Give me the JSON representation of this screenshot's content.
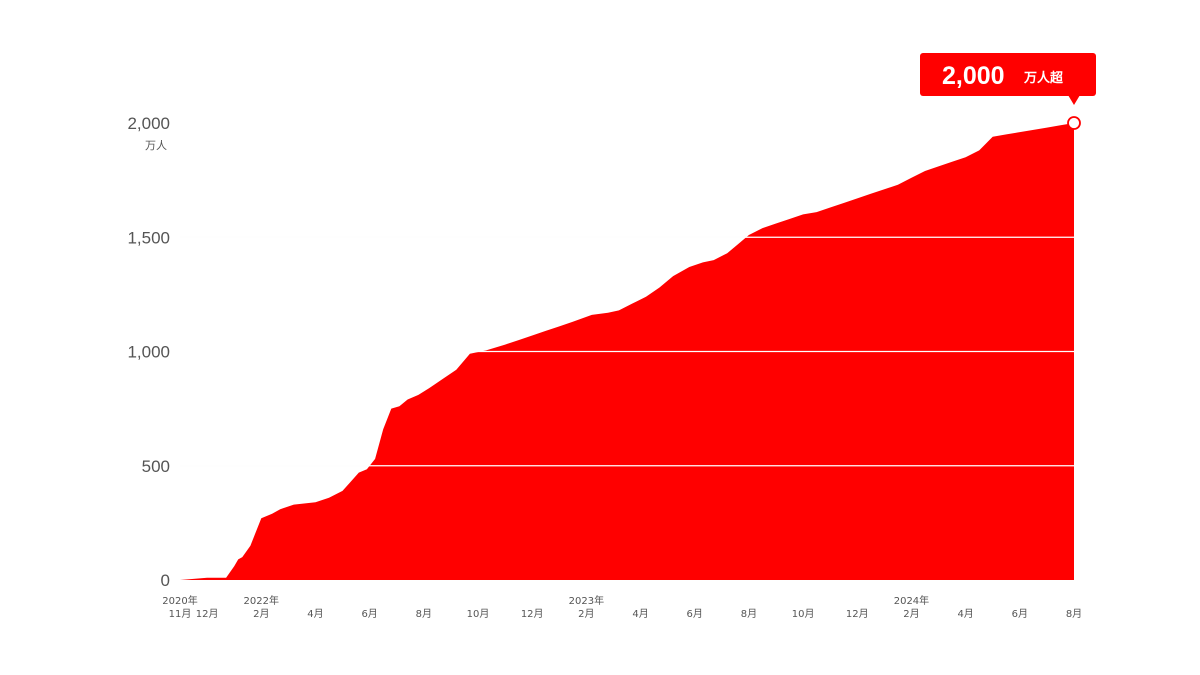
{
  "colors": {
    "fill": "#ff0000",
    "grid": "#e5e5e5",
    "text": "#555555",
    "callout_bg": "#ff0000",
    "callout_text": "#ffffff"
  },
  "chart_data": {
    "type": "area",
    "ylim": [
      0,
      2000
    ],
    "yticks": [
      {
        "value": 0,
        "label": "0"
      },
      {
        "value": 500,
        "label": "500"
      },
      {
        "value": 1000,
        "label": "1,000"
      },
      {
        "value": 1500,
        "label": "1,500"
      },
      {
        "value": 2000,
        "label": "2,000"
      }
    ],
    "yunit": "万人",
    "grid": true,
    "xticks": [
      {
        "month": 0,
        "year": "2020年",
        "label": "11月"
      },
      {
        "month": 1,
        "label": "12月"
      },
      {
        "month": 3,
        "year": "2022年",
        "label": "2月"
      },
      {
        "month": 5,
        "label": "4月"
      },
      {
        "month": 7,
        "label": "6月"
      },
      {
        "month": 9,
        "label": "8月"
      },
      {
        "month": 11,
        "label": "10月"
      },
      {
        "month": 13,
        "label": "12月"
      },
      {
        "month": 15,
        "year": "2023年",
        "label": "2月"
      },
      {
        "month": 17,
        "label": "4月"
      },
      {
        "month": 19,
        "label": "6月"
      },
      {
        "month": 21,
        "label": "8月"
      },
      {
        "month": 23,
        "label": "10月"
      },
      {
        "month": 25,
        "label": "12月"
      },
      {
        "month": 27,
        "year": "2024年",
        "label": "2月"
      },
      {
        "month": 29,
        "label": "4月"
      },
      {
        "month": 31,
        "label": "6月"
      },
      {
        "month": 33,
        "label": "8月"
      }
    ],
    "x": [
      0,
      0.5,
      1.0,
      1.4,
      1.7,
      2.0,
      2.15,
      2.3,
      2.6,
      3.0,
      3.4,
      3.7,
      4.2,
      5.0,
      5.5,
      6.0,
      6.3,
      6.6,
      6.9,
      7.2,
      7.5,
      7.8,
      8.1,
      8.4,
      8.8,
      9.2,
      9.7,
      10.2,
      10.7,
      11.1,
      11.3,
      12.0,
      12.5,
      13.0,
      13.5,
      14.0,
      14.5,
      15.2,
      15.8,
      16.2,
      16.7,
      17.2,
      17.7,
      18.2,
      18.8,
      19.3,
      19.7,
      20.2,
      20.6,
      21.0,
      21.5,
      22.0,
      22.5,
      23.0,
      23.5,
      24.0,
      24.5,
      25.0,
      25.5,
      26.0,
      26.5,
      27.0,
      27.5,
      28.0,
      28.5,
      29.0,
      29.5,
      30.0,
      30.5,
      31.0,
      31.5,
      32.0,
      32.5,
      33.0
    ],
    "y": [
      0,
      5,
      10,
      10,
      10,
      60,
      90,
      100,
      150,
      270,
      290,
      310,
      330,
      340,
      360,
      390,
      430,
      470,
      485,
      530,
      660,
      750,
      760,
      790,
      810,
      840,
      880,
      920,
      990,
      1000,
      1005,
      1030,
      1050,
      1070,
      1090,
      1110,
      1130,
      1160,
      1170,
      1180,
      1210,
      1240,
      1280,
      1330,
      1370,
      1390,
      1400,
      1430,
      1470,
      1510,
      1540,
      1560,
      1580,
      1600,
      1610,
      1630,
      1650,
      1670,
      1690,
      1710,
      1730,
      1760,
      1790,
      1810,
      1830,
      1850,
      1880,
      1940,
      1950,
      1960,
      1970,
      1980,
      1990,
      2000
    ]
  },
  "callout": {
    "value": "2,000",
    "unit": "万人超"
  }
}
